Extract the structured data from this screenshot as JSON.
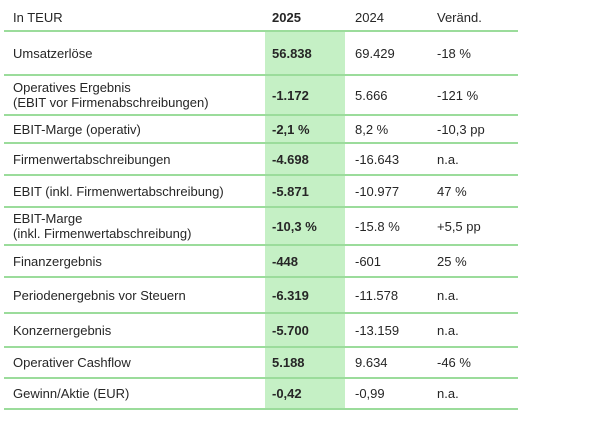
{
  "table": {
    "unit_label": "In TEUR",
    "colors": {
      "highlight_band": "#c5f0c5",
      "grid_line": "#9bdc9b",
      "text": "#262626"
    },
    "header": {
      "col_label": "In TEUR",
      "col_2025": "2025",
      "col_2024": "2024",
      "col_change": "Veränd."
    },
    "rows": [
      {
        "label": "Umsatzerlöse",
        "v2025": "56.838",
        "v2024": "69.429",
        "change": "-18 %"
      },
      {
        "label": "Operatives Ergebnis",
        "label2": "(EBIT vor Firmenabschreibungen)",
        "v2025": "-1.172",
        "v2024": "5.666",
        "change": "-121 %"
      },
      {
        "label": "EBIT-Marge (operativ)",
        "v2025": "-2,1 %",
        "v2024": "8,2 %",
        "change": "-10,3 pp"
      },
      {
        "label": "Firmenwertabschreibungen",
        "v2025": "-4.698",
        "v2024": "-16.643",
        "change": "n.a."
      },
      {
        "label": "EBIT (inkl. Firmenwertabschreibung)",
        "v2025": "-5.871",
        "v2024": "-10.977",
        "change": "47 %"
      },
      {
        "label": "EBIT-Marge",
        "label2": "(inkl. Firmenwertabschreibung)",
        "v2025": "-10,3 %",
        "v2024": "-15.8 %",
        "change": "+5,5 pp"
      },
      {
        "label": "Finanzergebnis",
        "v2025": "-448",
        "v2024": "-601",
        "change": "25 %"
      },
      {
        "label": "Periodenergebnis vor Steuern",
        "v2025": "-6.319",
        "v2024": "-11.578",
        "change": "n.a."
      },
      {
        "label": "Konzernergebnis",
        "v2025": "-5.700",
        "v2024": "-13.159",
        "change": "n.a."
      },
      {
        "label": "Operativer Cashflow",
        "v2025": "5.188",
        "v2024": "9.634",
        "change": "-46 %"
      },
      {
        "label": "Gewinn/Aktie (EUR)",
        "v2025": "-0,42",
        "v2024": "-0,99",
        "change": "n.a."
      }
    ]
  }
}
